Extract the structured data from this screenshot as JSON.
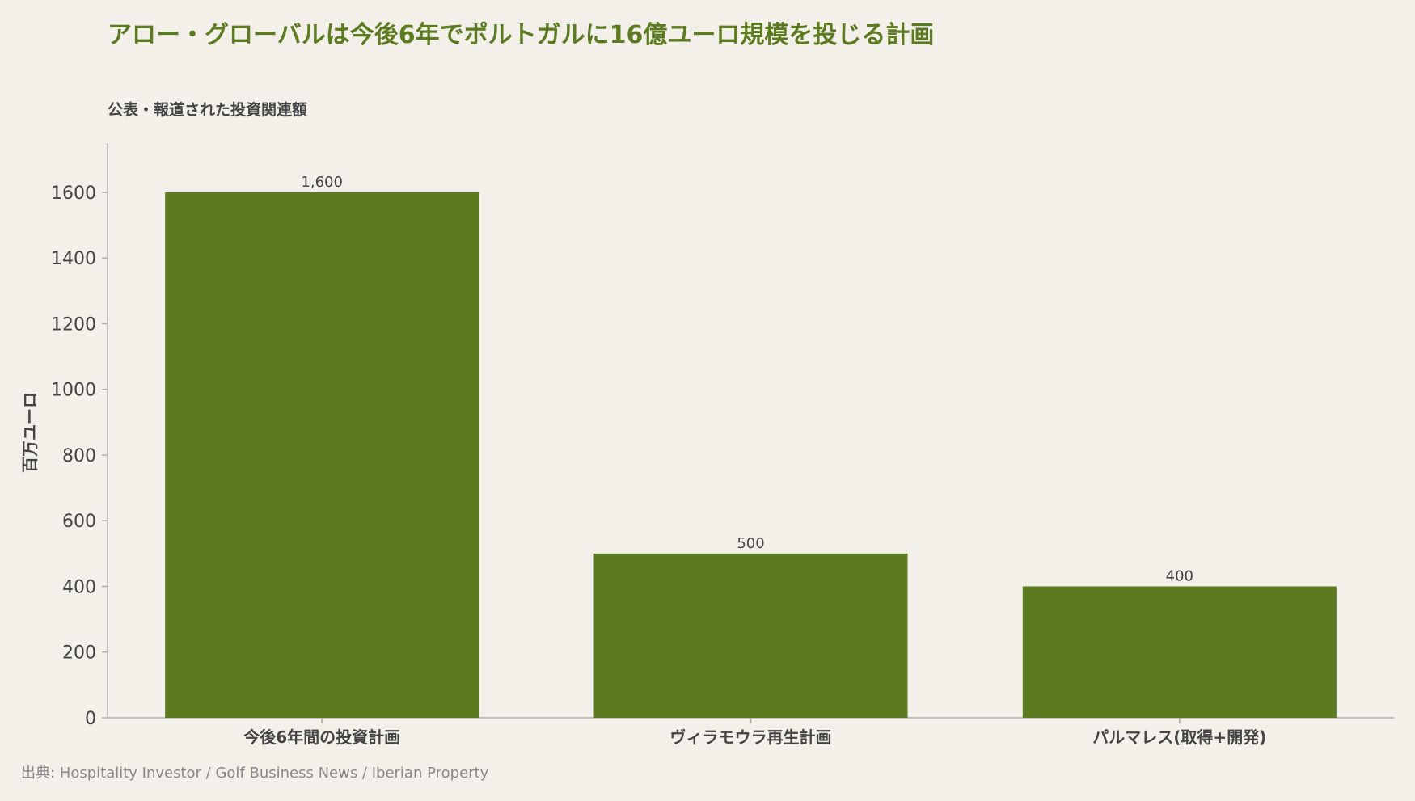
{
  "chart_data": {
    "type": "bar",
    "title": "アロー・グローバルは今後6年でポルトガルに16億ユーロ規模を投じる計画",
    "subtitle": "公表・報道された投資関連額",
    "ylabel": "百万ユーロ",
    "xlabel": "",
    "categories": [
      "今後6年間の投資計画",
      "ヴィラモウラ再生計画",
      "パルマレス(取得+開発)"
    ],
    "values": [
      1600,
      500,
      400
    ],
    "value_labels": [
      "1,600",
      "500",
      "400"
    ],
    "ylim": [
      0,
      1750
    ],
    "yticks": [
      0,
      200,
      400,
      600,
      800,
      1000,
      1200,
      1400,
      1600
    ],
    "grid": false,
    "legend": "none",
    "bar_color": "#5c7a20",
    "source": "出典: Hospitality Investor / Golf Business News / Iberian Property"
  }
}
